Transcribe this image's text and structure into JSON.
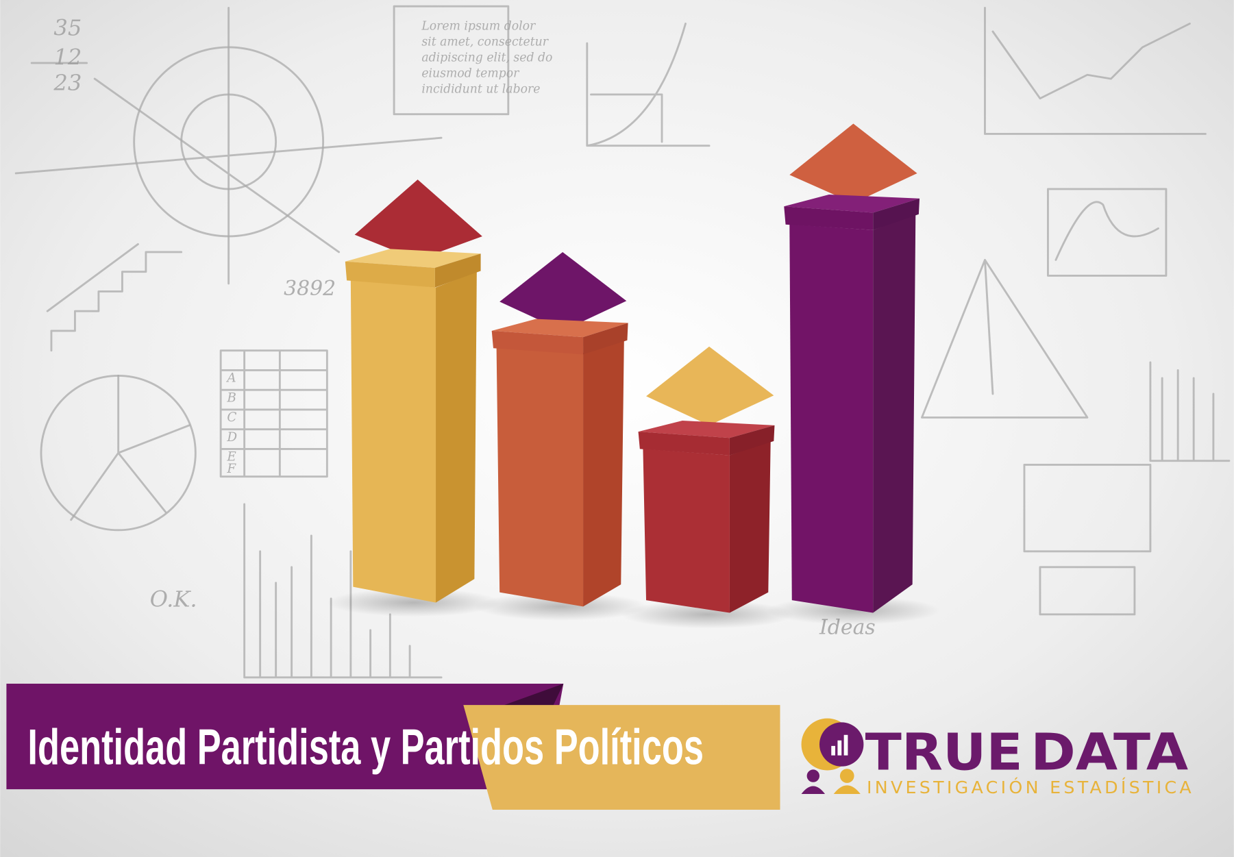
{
  "title": "Identidad Partidista y Partidos Políticos",
  "logo": {
    "word1": "TRUE",
    "word2": "DATA",
    "tagline": "INVESTIGACIÓN ESTADÍSTICA"
  },
  "sketch_labels": [
    "35",
    "12",
    "23",
    "3892",
    "O.K.",
    "Ideas",
    "Lorem ipsum dolor",
    "sit amet, consectetur",
    "adipiscing elit, sed do",
    "eiusmod tempor",
    "incididunt ut labore",
    "A",
    "B",
    "C",
    "D",
    "E",
    "F"
  ]
}
